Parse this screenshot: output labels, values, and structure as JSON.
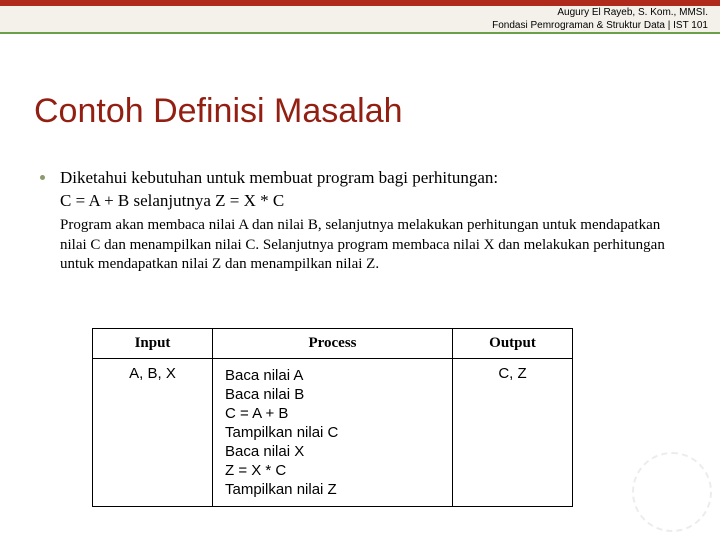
{
  "colors": {
    "red": "#b02a1b",
    "green_line": "#6aa04a",
    "header_bg": "#f4f1ea",
    "bullet": "#8b9a6a",
    "title": "#931f12",
    "text": "#000000"
  },
  "header": {
    "line1": "Augury El Rayeb, S. Kom., MMSI.",
    "line2": "Fondasi Pemrograman & Struktur Data | IST 101"
  },
  "title": "Contoh Definisi Masalah",
  "bullet": {
    "line1": "Diketahui kebutuhan untuk membuat program bagi perhitungan:",
    "line2": "C = A + B selanjutnya Z = X * C"
  },
  "subpara": "Program akan membaca nilai A dan nilai B, selanjutnya melakukan perhitungan untuk mendapatkan nilai C dan menampilkan nilai C. Selanjutnya program membaca nilai X dan melakukan perhitungan untuk mendapatkan nilai Z  dan menampilkan nilai Z.",
  "table": {
    "headers": {
      "input": "Input",
      "process": "Process",
      "output": "Output"
    },
    "input": "A, B, X",
    "process": [
      "Baca nilai A",
      "Baca nilai B",
      "C = A + B",
      "Tampilkan nilai C",
      "Baca nilai X",
      "Z = X * C",
      "Tampilkan nilai Z"
    ],
    "output": "C, Z"
  }
}
